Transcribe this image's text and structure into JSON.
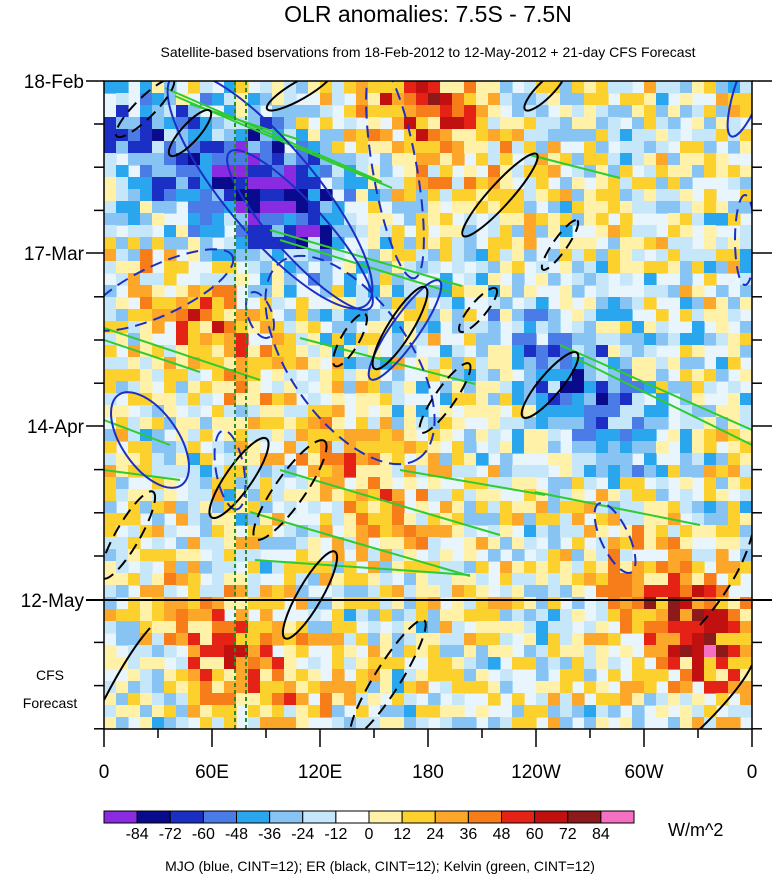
{
  "chart_data": {
    "type": "heatmap",
    "title": "OLR anomalies: 7.5S - 7.5N",
    "subtitle": "Satellite-based bservations from 18-Feb-2012 to 12-May-2012 + 21-day CFS Forecast",
    "x_ticks": [
      "0",
      "60E",
      "120E",
      "180",
      "120W",
      "60W",
      "0"
    ],
    "y_ticks": [
      "18-Feb",
      "17-Mar",
      "14-Apr",
      "12-May"
    ],
    "forecast_label": [
      "CFS",
      "Forecast"
    ],
    "colorbar": {
      "levels": [
        "-84",
        "-72",
        "-60",
        "-48",
        "-36",
        "-24",
        "-12",
        "0",
        "12",
        "24",
        "36",
        "48",
        "60",
        "72",
        "84"
      ],
      "colors": [
        "#8a2be2",
        "#0a0a8c",
        "#1c2fc4",
        "#4a7be6",
        "#2aa6ee",
        "#87c4f4",
        "#c6e6fa",
        "#ffffff",
        "#fff1a8",
        "#fcd12e",
        "#fca62a",
        "#f77c1a",
        "#e52216",
        "#c01010",
        "#8c1a1a",
        "#f56fc2"
      ],
      "units": "W/m^2"
    },
    "legend_text": "MJO (blue, CINT=12); ER (black, CINT=12); Kelvin (green, CINT=12)",
    "series_colors": {
      "MJO": "#1c2fc4",
      "ER": "#000000",
      "Kelvin": "#2ecc2e"
    }
  }
}
